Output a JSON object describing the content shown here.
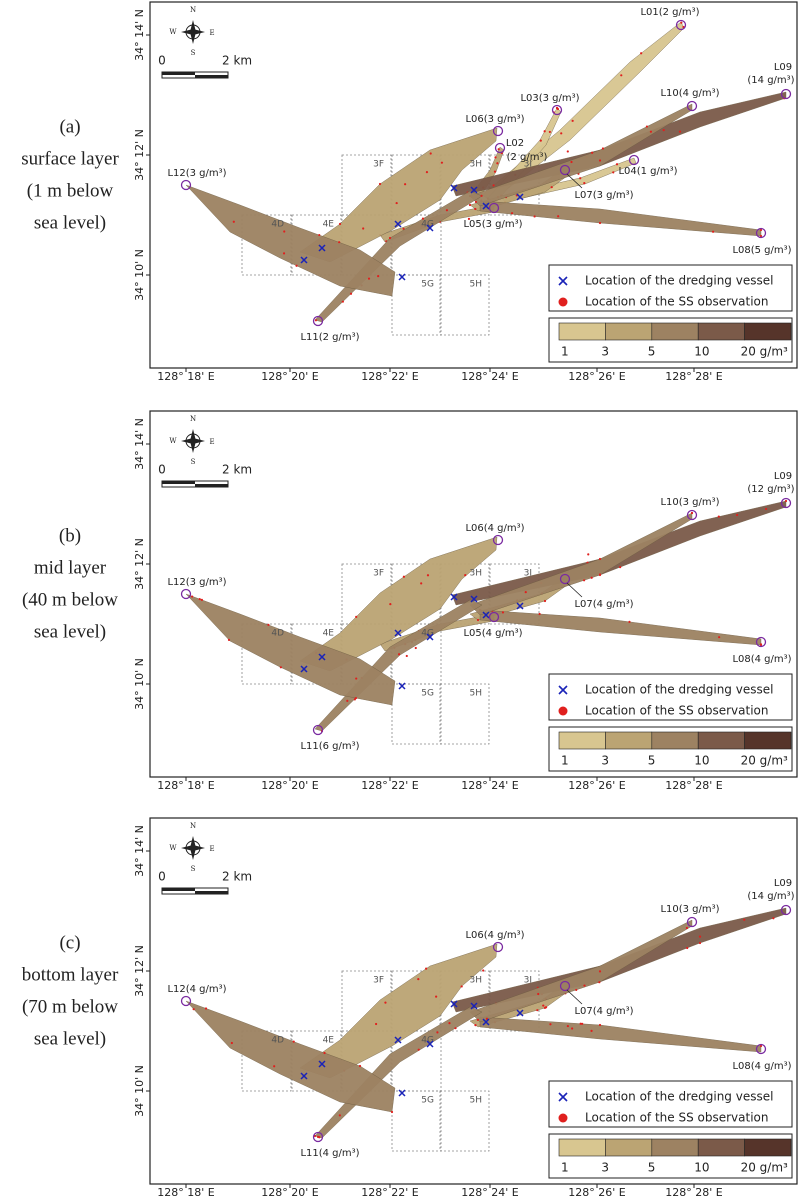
{
  "panels": [
    {
      "label": "(a)",
      "layer": "surface layer",
      "depth": [
        "(1 m below",
        "sea level)"
      ],
      "stations": [
        {
          "id": "L01",
          "reading": "(2 g/m³)"
        },
        {
          "id": "L02",
          "reading": "(2 g/m³)"
        },
        {
          "id": "L03",
          "reading": "(3 g/m³)"
        },
        {
          "id": "L04",
          "reading": "(1 g/m³)"
        },
        {
          "id": "L05",
          "reading": "(3 g/m³)"
        },
        {
          "id": "L06",
          "reading": "(3 g/m³)"
        },
        {
          "id": "L07",
          "reading": "(3 g/m³)"
        },
        {
          "id": "L08",
          "reading": "(5 g/m³)"
        },
        {
          "id": "L09",
          "reading": "(14 g/m³)"
        },
        {
          "id": "L10",
          "reading": "(4 g/m³)"
        },
        {
          "id": "L11",
          "reading": "(2 g/m³)"
        },
        {
          "id": "L12",
          "reading": "(3 g/m³)"
        }
      ]
    },
    {
      "label": "(b)",
      "layer": "mid layer",
      "depth": [
        "(40 m below",
        "sea level)"
      ],
      "stations": [
        {
          "id": "L05",
          "reading": "(4 g/m³)"
        },
        {
          "id": "L06",
          "reading": "(4 g/m³)"
        },
        {
          "id": "L07",
          "reading": "(4 g/m³)"
        },
        {
          "id": "L08",
          "reading": "(4 g/m³)"
        },
        {
          "id": "L09",
          "reading": "(12 g/m³)"
        },
        {
          "id": "L10",
          "reading": "(3 g/m³)"
        },
        {
          "id": "L11",
          "reading": "(6 g/m³)"
        },
        {
          "id": "L12",
          "reading": "(3 g/m³)"
        }
      ]
    },
    {
      "label": "(c)",
      "layer": "bottom layer",
      "depth": [
        "(70 m below",
        "sea level)"
      ],
      "stations": [
        {
          "id": "L06",
          "reading": "(4 g/m³)"
        },
        {
          "id": "L07",
          "reading": "(4 g/m³)"
        },
        {
          "id": "L08",
          "reading": "(4 g/m³)"
        },
        {
          "id": "L09",
          "reading": "(14 g/m³)"
        },
        {
          "id": "L10",
          "reading": "(3 g/m³)"
        },
        {
          "id": "L11",
          "reading": "(4 g/m³)"
        },
        {
          "id": "L12",
          "reading": "(4 g/m³)"
        }
      ]
    }
  ],
  "x_axis_labels": [
    "128° 18' E",
    "128° 20' E",
    "128° 22' E",
    "128° 24' E",
    "128° 26' E",
    "128° 28' E"
  ],
  "y_axis_labels": [
    "34° 14' N",
    "34° 12' N",
    "34° 10' N"
  ],
  "grid_cells": [
    "3F",
    "3H",
    "3I",
    "4D",
    "4E",
    "4G",
    "5G",
    "5H"
  ],
  "compass": {
    "north": "N",
    "south": "S",
    "east": "E",
    "west": "W"
  },
  "scale_bar": {
    "start": "0",
    "end": "2 km"
  },
  "legend": {
    "vessel": "Location of the dredging vessel",
    "observation": "Location of the SS observation"
  },
  "colorbar": {
    "ticks": [
      "1",
      "3",
      "5",
      "10",
      "20 g/m³"
    ],
    "colors": [
      "#d8c690",
      "#bba473",
      "#9d8262",
      "#7b5a49",
      "#56342a"
    ]
  }
}
